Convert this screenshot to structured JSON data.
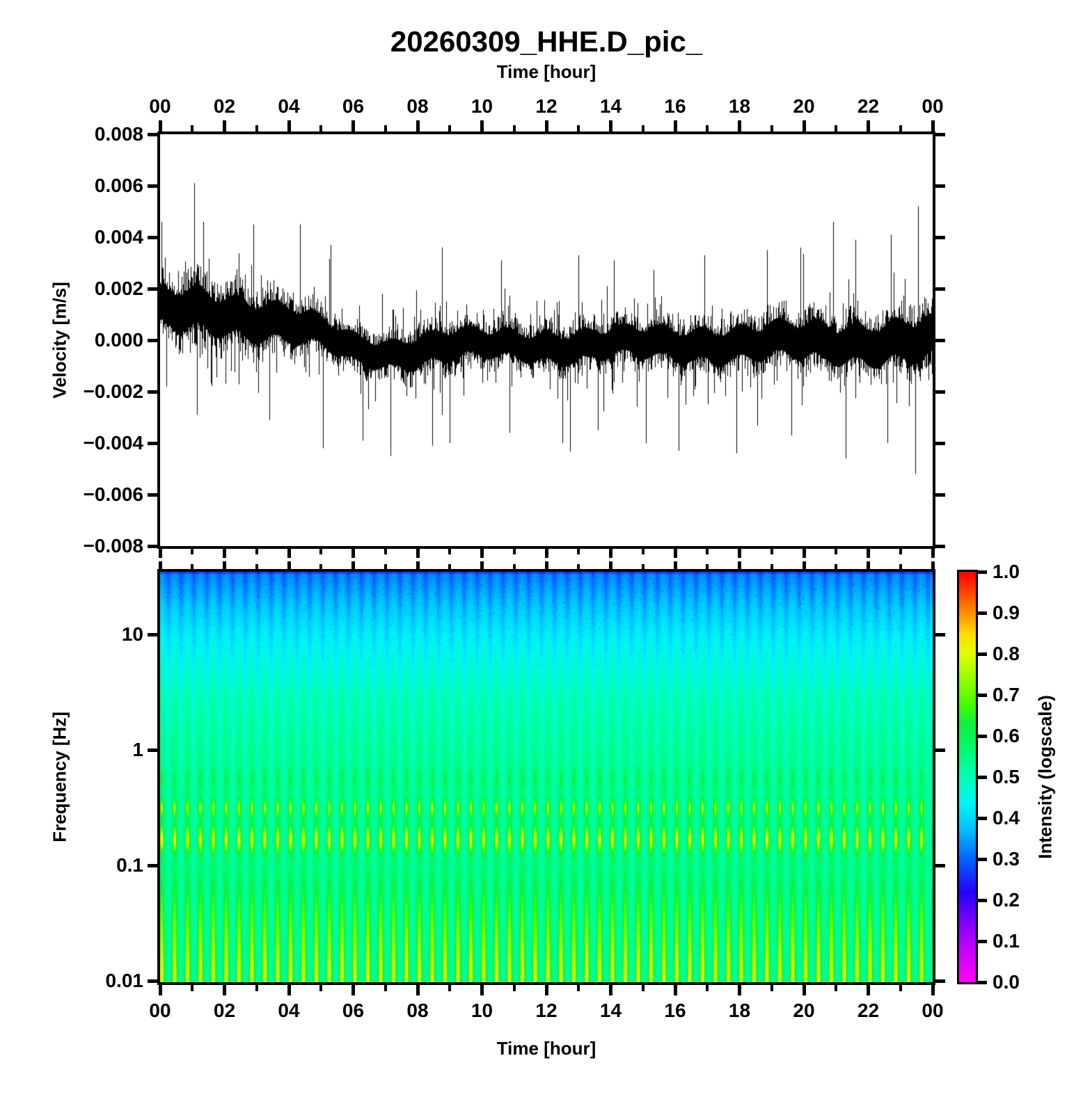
{
  "title": "20260309_HHE.D_pic_",
  "axes": {
    "top_x": {
      "label": "Time [hour]",
      "tick_labels": [
        "00",
        "02",
        "04",
        "06",
        "08",
        "10",
        "12",
        "14",
        "16",
        "18",
        "20",
        "22",
        "00"
      ]
    },
    "bottom_x": {
      "label": "Time [hour]",
      "tick_labels": [
        "00",
        "02",
        "04",
        "06",
        "08",
        "10",
        "12",
        "14",
        "16",
        "18",
        "20",
        "22",
        "00"
      ]
    },
    "waveform_y": {
      "label": "Velocity [m/s]",
      "tick_labels": [
        "0.008",
        "0.006",
        "0.004",
        "0.002",
        "0.000",
        "−0.002",
        "−0.004",
        "−0.006",
        "−0.008"
      ]
    },
    "spectrogram_y": {
      "label": "Frequency [Hz]",
      "tick_labels": [
        "10",
        "1",
        "0.1",
        "0.01"
      ]
    },
    "colorbar": {
      "label": "Intensity (logscale)",
      "tick_labels": [
        "1.0",
        "0.9",
        "0.8",
        "0.7",
        "0.6",
        "0.5",
        "0.4",
        "0.3",
        "0.2",
        "0.1",
        "0.0"
      ]
    }
  },
  "colors": {
    "trace": "#000000",
    "frame": "#000000",
    "background": "#FFFFFF"
  },
  "chart_data": [
    {
      "type": "line",
      "title": "20260309_HHE.D_pic_",
      "xlabel": "Time [hour]",
      "ylabel": "Velocity [m/s]",
      "x_range_hours": [
        0,
        24
      ],
      "x_tick_step_hours": 2,
      "ylim": [
        -0.008,
        0.008
      ],
      "y_tick_step": 0.002,
      "line_color": "#000000",
      "series_description": "continuous 24 h seismic velocity waveform; dense noise band, mean near +0.001 m/s for hours 0-5, dipping slightly negative hours 5-8, near zero afterwards with amplitude growing again after hour 18",
      "envelope": {
        "hours": [
          0,
          1,
          2,
          3,
          4,
          5,
          6,
          7,
          8,
          9,
          10,
          11,
          12,
          13,
          14,
          15,
          16,
          17,
          18,
          19,
          20,
          21,
          22,
          23,
          24
        ],
        "center": [
          0.0011,
          0.001,
          0.00095,
          0.0009,
          0.00075,
          0.0003,
          -0.00035,
          -0.0005,
          -0.00025,
          -0.0001,
          -0.00015,
          -0.0002,
          -0.00025,
          -0.0002,
          -0.00015,
          -0.0002,
          -0.00025,
          -0.0002,
          -0.0002,
          -0.00015,
          -0.0001,
          -0.0001,
          -5e-05,
          0,
          0
        ],
        "half_width": [
          0.0013,
          0.0015,
          0.00135,
          0.00135,
          0.0013,
          0.00105,
          0.001,
          0.00095,
          0.0011,
          0.00105,
          0.00095,
          0.00095,
          0.001,
          0.00105,
          0.001,
          0.00105,
          0.0011,
          0.00115,
          0.00115,
          0.0012,
          0.00125,
          0.0013,
          0.00135,
          0.00145,
          0.00145
        ]
      },
      "notable_peaks": [
        [
          0.05,
          0.0046
        ],
        [
          1.05,
          0.0061
        ],
        [
          1.35,
          0.0046
        ],
        [
          2.9,
          0.0045
        ],
        [
          4.35,
          0.0045
        ],
        [
          5.3,
          0.0037
        ],
        [
          8.75,
          0.0036
        ],
        [
          10.6,
          0.0031
        ],
        [
          13.0,
          0.0033
        ],
        [
          14.1,
          0.0031
        ],
        [
          16.9,
          0.0033
        ],
        [
          18.85,
          0.0035
        ],
        [
          19.9,
          0.0036
        ],
        [
          20.9,
          0.0046
        ],
        [
          21.6,
          0.0039
        ],
        [
          22.7,
          0.0041
        ],
        [
          23.55,
          0.0052
        ]
      ],
      "notable_troughs": [
        [
          0.2,
          -0.0018
        ],
        [
          1.15,
          -0.0029
        ],
        [
          3.4,
          -0.0031
        ],
        [
          5.05,
          -0.0042
        ],
        [
          6.3,
          -0.0039
        ],
        [
          7.15,
          -0.0045
        ],
        [
          8.45,
          -0.0041
        ],
        [
          9.0,
          -0.004
        ],
        [
          10.85,
          -0.0036
        ],
        [
          12.5,
          -0.004
        ],
        [
          13.6,
          -0.0035
        ],
        [
          15.1,
          -0.004
        ],
        [
          16.1,
          -0.0043
        ],
        [
          17.9,
          -0.0044
        ],
        [
          19.6,
          -0.0037
        ],
        [
          21.3,
          -0.0046
        ],
        [
          22.6,
          -0.004
        ],
        [
          23.45,
          -0.0052
        ]
      ]
    },
    {
      "type": "heatmap",
      "xlabel": "Time [hour]",
      "ylabel": "Frequency [Hz]",
      "x_range_hours": [
        0,
        24
      ],
      "freq_range_hz": [
        0.01,
        35
      ],
      "freq_scale": "log",
      "colorbar_label": "Intensity (logscale)",
      "colorbar_range": [
        0.0,
        1.0
      ],
      "colorbar_tick_step": 0.1,
      "background_profile": {
        "freq_hz": [
          35,
          10,
          3,
          1,
          0.3,
          0.05,
          0.01
        ],
        "intensity": [
          0.32,
          0.43,
          0.5,
          0.53,
          0.55,
          0.555,
          0.56
        ]
      },
      "spectral_bands": [
        {
          "center_freq_hz": 0.56,
          "peak_intensity": 0.62,
          "pattern": "dotted"
        },
        {
          "center_freq_hz": 0.32,
          "peak_intensity": 0.77,
          "pattern": "dotted"
        },
        {
          "center_freq_hz": 0.17,
          "peak_intensity": 0.83,
          "pattern": "dashed"
        },
        {
          "freq_below_hz": 0.1,
          "peak_intensity": 0.81,
          "pattern": "vertical-stripes"
        }
      ],
      "stripe_period_hours": 0.4,
      "colormap": {
        "name": "rainbow (magenta to red)",
        "stops": [
          [
            0,
            "#FF00FF"
          ],
          [
            0.08,
            "#C800FF"
          ],
          [
            0.15,
            "#7D00FF"
          ],
          [
            0.22,
            "#2800FF"
          ],
          [
            0.3,
            "#0064FF"
          ],
          [
            0.38,
            "#00C8FF"
          ],
          [
            0.44,
            "#00F5F5"
          ],
          [
            0.5,
            "#00FFB9"
          ],
          [
            0.57,
            "#00FA6E"
          ],
          [
            0.63,
            "#0FF03C"
          ],
          [
            0.68,
            "#46FF00"
          ],
          [
            0.75,
            "#A0FF00"
          ],
          [
            0.8,
            "#E1FF00"
          ],
          [
            0.85,
            "#FFDC00"
          ],
          [
            0.9,
            "#FF9100"
          ],
          [
            0.95,
            "#FF4600"
          ],
          [
            1,
            "#FF0000"
          ]
        ]
      }
    }
  ]
}
